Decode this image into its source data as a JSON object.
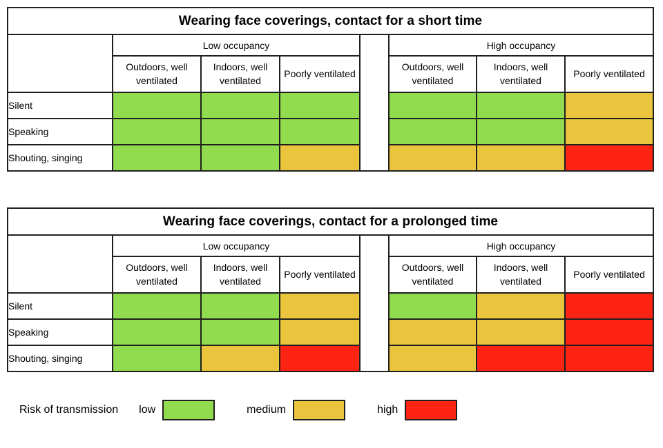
{
  "colors": {
    "low": "#90db4e",
    "medium": "#e9c43c",
    "high": "#fd2413",
    "border": "#1f1f1f"
  },
  "legend": {
    "title": "Risk of transmission",
    "items": [
      {
        "label": "low",
        "level": "low"
      },
      {
        "label": "medium",
        "level": "medium"
      },
      {
        "label": "high",
        "level": "high"
      }
    ]
  },
  "chart_data": [
    {
      "type": "heatmap",
      "title": "Wearing face coverings, contact for a short time",
      "rows": [
        "Silent",
        "Speaking",
        "Shouting, singing"
      ],
      "col_groups": [
        {
          "label": "Low occupancy",
          "columns": [
            "Outdoors, well ventilated",
            "Indoors, well ventilated",
            "Poorly ventilated"
          ]
        },
        {
          "label": "High occupancy",
          "columns": [
            "Outdoors, well ventilated",
            "Indoors, well ventilated",
            "Poorly ventilated"
          ]
        }
      ],
      "values": [
        [
          "low",
          "low",
          "low",
          "low",
          "low",
          "medium"
        ],
        [
          "low",
          "low",
          "low",
          "low",
          "low",
          "medium"
        ],
        [
          "low",
          "low",
          "medium",
          "medium",
          "medium",
          "high"
        ]
      ]
    },
    {
      "type": "heatmap",
      "title": "Wearing face coverings, contact for a prolonged time",
      "rows": [
        "Silent",
        "Speaking",
        "Shouting, singing"
      ],
      "col_groups": [
        {
          "label": "Low occupancy",
          "columns": [
            "Outdoors, well ventilated",
            "Indoors, well ventilated",
            "Poorly ventilated"
          ]
        },
        {
          "label": "High occupancy",
          "columns": [
            "Outdoors, well ventilated",
            "Indoors, well ventilated",
            "Poorly ventilated"
          ]
        }
      ],
      "values": [
        [
          "low",
          "low",
          "medium",
          "low",
          "medium",
          "high"
        ],
        [
          "low",
          "low",
          "medium",
          "medium",
          "medium",
          "high"
        ],
        [
          "low",
          "medium",
          "high",
          "medium",
          "high",
          "high"
        ]
      ]
    }
  ]
}
